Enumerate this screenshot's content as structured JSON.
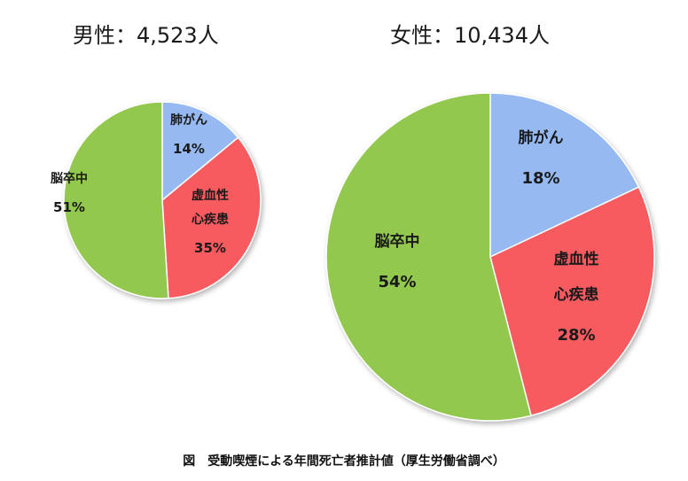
{
  "chart_data": [
    {
      "type": "pie",
      "title": "男性：4,523人",
      "slices": [
        {
          "name": "肺がん",
          "value": 14,
          "label": "14%",
          "color": "#95b9f0"
        },
        {
          "name": "虚血性\n心疾患",
          "value": 35,
          "label": "35%",
          "color": "#f75a5e"
        },
        {
          "name": "脳卒中",
          "value": 51,
          "label": "51%",
          "color": "#92c84d"
        }
      ]
    },
    {
      "type": "pie",
      "title": "女性：10,434人",
      "slices": [
        {
          "name": "肺がん",
          "value": 18,
          "label": "18%",
          "color": "#95b9f0"
        },
        {
          "name": "虚血性\n心疾患",
          "value": 28,
          "label": "28%",
          "color": "#f75a5e"
        },
        {
          "name": "脳卒中",
          "value": 54,
          "label": "54%",
          "color": "#92c84d"
        }
      ]
    }
  ],
  "caption": "図　受動喫煙による年間死亡者推計値（厚生労働省調べ）"
}
